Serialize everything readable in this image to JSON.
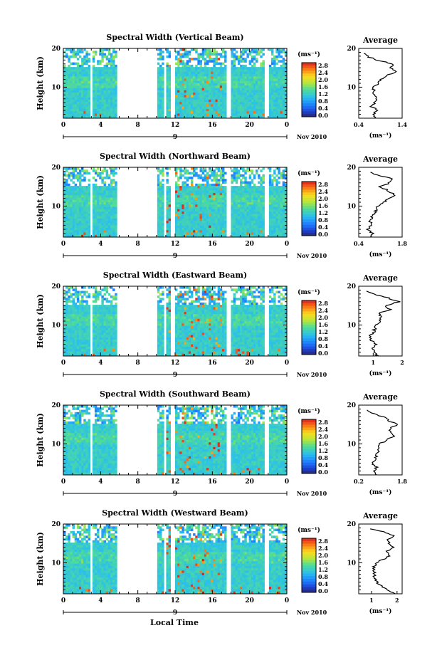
{
  "figure": {
    "xlabel": "Local Time",
    "colorbar_unit": "(ms⁻¹)",
    "colorbar_ticks": [
      "2.8",
      "2.4",
      "2.0",
      "1.6",
      "1.2",
      "0.8",
      "0.4",
      "0.0"
    ],
    "date_label": "Nov 2010",
    "day_label": "9",
    "avg_title": "Average",
    "avg_xlabel": "(ms⁻¹)"
  },
  "chart_data": [
    {
      "type": "heatmap",
      "title": "Spectral Width (Vertical Beam)",
      "ylabel": "Height (km)",
      "xlabel": "Local Time",
      "x_ticks": [
        "0",
        "4",
        "8",
        "12",
        "16",
        "20",
        "0"
      ],
      "y_ticks": [
        "20",
        "10"
      ],
      "xlim": [
        0,
        24
      ],
      "ylim": [
        2,
        20
      ],
      "colorbar": {
        "min": 0.0,
        "max": 3.0,
        "ticks": [
          0.0,
          0.4,
          0.8,
          1.2,
          1.6,
          2.0,
          2.4,
          2.8
        ],
        "unit": "ms^-1"
      },
      "data_gaps_hours": [
        [
          2.9,
          3.2
        ],
        [
          5.8,
          10.0
        ],
        [
          10.7,
          11.1
        ],
        [
          11.5,
          12.0
        ],
        [
          17.6,
          18.0
        ],
        [
          21.6,
          22.0
        ]
      ],
      "average_profile": {
        "xlim": [
          0.4,
          1.4
        ],
        "x_ticks": [
          "0.4",
          "1.4"
        ],
        "y_ticks": [
          "20",
          "10"
        ],
        "height_km": [
          2,
          3,
          4,
          5,
          6,
          7,
          8,
          9,
          10,
          11,
          12,
          13,
          14,
          15,
          16,
          17,
          18,
          19
        ],
        "values": [
          0.78,
          0.72,
          0.82,
          0.7,
          0.76,
          0.8,
          0.74,
          0.78,
          0.72,
          0.85,
          0.9,
          1.05,
          1.25,
          1.15,
          1.2,
          0.8,
          0.6,
          0.52
        ]
      }
    },
    {
      "type": "heatmap",
      "title": "Spectral Width (Northward Beam)",
      "ylabel": "Height (km)",
      "xlabel": "Local Time",
      "x_ticks": [
        "0",
        "4",
        "8",
        "12",
        "16",
        "20",
        "0"
      ],
      "y_ticks": [
        "20",
        "10"
      ],
      "xlim": [
        0,
        24
      ],
      "ylim": [
        2,
        20
      ],
      "colorbar": {
        "min": 0.0,
        "max": 3.0,
        "ticks": [
          0.0,
          0.4,
          0.8,
          1.2,
          1.6,
          2.0,
          2.4,
          2.8
        ],
        "unit": "ms^-1"
      },
      "data_gaps_hours": [
        [
          2.9,
          3.2
        ],
        [
          5.8,
          10.0
        ],
        [
          10.7,
          11.1
        ],
        [
          11.5,
          12.0
        ],
        [
          17.6,
          18.0
        ],
        [
          21.6,
          22.0
        ]
      ],
      "average_profile": {
        "xlim": [
          0.4,
          1.8
        ],
        "x_ticks": [
          "0.4",
          "1.8"
        ],
        "y_ticks": [
          "20",
          "10"
        ],
        "height_km": [
          2,
          3,
          4,
          5,
          6,
          7,
          8,
          9,
          10,
          11,
          12,
          13,
          14,
          15,
          16,
          17,
          18,
          19
        ],
        "values": [
          0.75,
          0.85,
          0.7,
          0.8,
          0.78,
          0.82,
          0.9,
          0.95,
          1.0,
          1.2,
          1.4,
          1.55,
          1.35,
          1.1,
          1.4,
          1.5,
          1.0,
          0.7
        ]
      }
    },
    {
      "type": "heatmap",
      "title": "Spectral Width (Eastward Beam)",
      "ylabel": "Height (km)",
      "xlabel": "Local Time",
      "x_ticks": [
        "0",
        "4",
        "8",
        "12",
        "16",
        "20",
        "0"
      ],
      "y_ticks": [
        "20",
        "10"
      ],
      "xlim": [
        0,
        24
      ],
      "ylim": [
        2,
        20
      ],
      "colorbar": {
        "min": 0.0,
        "max": 3.0,
        "ticks": [
          0.0,
          0.4,
          0.8,
          1.2,
          1.6,
          2.0,
          2.4,
          2.8
        ],
        "unit": "ms^-1"
      },
      "data_gaps_hours": [
        [
          2.9,
          3.2
        ],
        [
          5.8,
          10.0
        ],
        [
          10.7,
          11.1
        ],
        [
          11.5,
          12.0
        ],
        [
          17.6,
          18.0
        ],
        [
          21.6,
          22.0
        ]
      ],
      "average_profile": {
        "xlim": [
          0.5,
          2.0
        ],
        "x_ticks": [
          "1",
          "2"
        ],
        "y_ticks": [
          "20",
          "10"
        ],
        "height_km": [
          2,
          3,
          4,
          5,
          6,
          7,
          8,
          9,
          10,
          11,
          12,
          13,
          14,
          15,
          16,
          17,
          18,
          19
        ],
        "values": [
          1.15,
          1.05,
          1.0,
          1.1,
          0.95,
          0.9,
          1.0,
          1.05,
          1.1,
          1.25,
          1.3,
          1.2,
          1.6,
          1.4,
          1.9,
          1.5,
          1.0,
          0.7
        ]
      }
    },
    {
      "type": "heatmap",
      "title": "Spectral Width (Southward Beam)",
      "ylabel": "Height (km)",
      "xlabel": "Local Time",
      "x_ticks": [
        "0",
        "4",
        "8",
        "12",
        "16",
        "20",
        "0"
      ],
      "y_ticks": [
        "20",
        "10"
      ],
      "xlim": [
        0,
        24
      ],
      "ylim": [
        2,
        20
      ],
      "colorbar": {
        "min": 0.0,
        "max": 3.0,
        "ticks": [
          0.0,
          0.4,
          0.8,
          1.2,
          1.6,
          2.0,
          2.4,
          2.8
        ],
        "unit": "ms^-1"
      },
      "data_gaps_hours": [
        [
          2.9,
          3.2
        ],
        [
          5.8,
          10.0
        ],
        [
          10.7,
          11.1
        ],
        [
          11.5,
          12.0
        ],
        [
          17.6,
          18.0
        ],
        [
          21.6,
          22.0
        ]
      ],
      "average_profile": {
        "xlim": [
          0.2,
          1.8
        ],
        "x_ticks": [
          "0.2",
          "1.8"
        ],
        "y_ticks": [
          "20",
          "10"
        ],
        "height_km": [
          2,
          3,
          4,
          5,
          6,
          7,
          8,
          9,
          10,
          11,
          12,
          13,
          14,
          15,
          16,
          17,
          18,
          19
        ],
        "values": [
          0.8,
          0.75,
          0.85,
          0.7,
          0.8,
          0.85,
          0.9,
          0.95,
          1.0,
          1.2,
          1.5,
          1.4,
          1.35,
          1.6,
          1.3,
          1.1,
          0.7,
          0.5
        ]
      }
    },
    {
      "type": "heatmap",
      "title": "Spectral Width (Westward Beam)",
      "ylabel": "Height (km)",
      "xlabel": "Local Time",
      "x_ticks": [
        "0",
        "4",
        "8",
        "12",
        "16",
        "20",
        "0"
      ],
      "y_ticks": [
        "20",
        "10"
      ],
      "xlim": [
        0,
        24
      ],
      "ylim": [
        2,
        20
      ],
      "colorbar": {
        "min": 0.0,
        "max": 3.0,
        "ticks": [
          0.0,
          0.4,
          0.8,
          1.2,
          1.6,
          2.0,
          2.4,
          2.8
        ],
        "unit": "ms^-1"
      },
      "data_gaps_hours": [
        [
          2.9,
          3.2
        ],
        [
          5.8,
          10.0
        ],
        [
          10.7,
          11.1
        ],
        [
          11.5,
          12.0
        ],
        [
          17.6,
          18.0
        ],
        [
          21.6,
          22.0
        ]
      ],
      "average_profile": {
        "xlim": [
          0.5,
          2.2
        ],
        "x_ticks": [
          "1",
          "2"
        ],
        "y_ticks": [
          "20",
          "10"
        ],
        "height_km": [
          2,
          3,
          4,
          5,
          6,
          7,
          8,
          9,
          10,
          11,
          12,
          13,
          14,
          15,
          16,
          17,
          18,
          19
        ],
        "values": [
          1.9,
          1.6,
          1.4,
          1.2,
          1.1,
          1.15,
          1.05,
          1.1,
          1.2,
          1.5,
          1.7,
          1.6,
          1.85,
          1.7,
          1.6,
          1.9,
          1.5,
          0.8
        ]
      }
    }
  ]
}
